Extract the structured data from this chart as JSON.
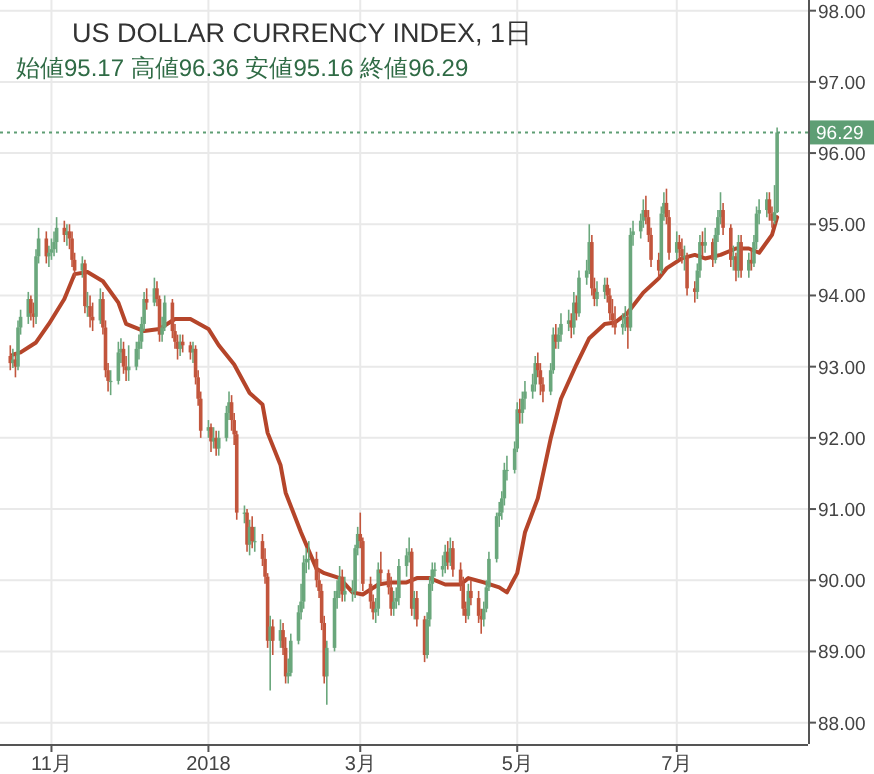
{
  "chart_data": {
    "type": "candlestick",
    "title": "US DOLLAR CURRENCY INDEX, 1日",
    "annotations": [
      "始値95.17 高値96.36 安値95.16 終値96.29"
    ],
    "x": [
      "2017-10-16",
      "2017-10-17",
      "2017-10-18",
      "2017-10-19",
      "2017-10-20",
      "2017-10-23",
      "2017-10-24",
      "2017-10-25",
      "2017-10-26",
      "2017-10-27",
      "2017-10-30",
      "2017-10-31",
      "2017-11-01",
      "2017-11-02",
      "2017-11-03",
      "2017-11-06",
      "2017-11-07",
      "2017-11-08",
      "2017-11-09",
      "2017-11-10",
      "2017-11-13",
      "2017-11-14",
      "2017-11-15",
      "2017-11-16",
      "2017-11-17",
      "2017-11-20",
      "2017-11-21",
      "2017-11-22",
      "2017-11-23",
      "2017-11-24",
      "2017-11-27",
      "2017-11-28",
      "2017-11-29",
      "2017-11-30",
      "2017-12-01",
      "2017-12-04",
      "2017-12-05",
      "2017-12-06",
      "2017-12-07",
      "2017-12-08",
      "2017-12-11",
      "2017-12-12",
      "2017-12-13",
      "2017-12-14",
      "2017-12-15",
      "2017-12-18",
      "2017-12-19",
      "2017-12-20",
      "2017-12-21",
      "2017-12-22",
      "2017-12-25",
      "2017-12-26",
      "2017-12-27",
      "2017-12-28",
      "2017-12-29",
      "2018-01-01",
      "2018-01-02",
      "2018-01-03",
      "2018-01-04",
      "2018-01-05",
      "2018-01-08",
      "2018-01-09",
      "2018-01-10",
      "2018-01-11",
      "2018-01-12",
      "2018-01-15",
      "2018-01-16",
      "2018-01-17",
      "2018-01-18",
      "2018-01-19",
      "2018-01-22",
      "2018-01-23",
      "2018-01-24",
      "2018-01-25",
      "2018-01-26",
      "2018-01-29",
      "2018-01-30",
      "2018-01-31",
      "2018-02-01",
      "2018-02-02",
      "2018-02-05",
      "2018-02-06",
      "2018-02-07",
      "2018-02-08",
      "2018-02-09",
      "2018-02-12",
      "2018-02-13",
      "2018-02-14",
      "2018-02-15",
      "2018-02-16",
      "2018-02-19",
      "2018-02-20",
      "2018-02-21",
      "2018-02-22",
      "2018-02-23",
      "2018-02-26",
      "2018-02-27",
      "2018-02-28",
      "2018-03-01",
      "2018-03-02",
      "2018-03-05",
      "2018-03-06",
      "2018-03-07",
      "2018-03-08",
      "2018-03-09",
      "2018-03-12",
      "2018-03-13",
      "2018-03-14",
      "2018-03-15",
      "2018-03-16",
      "2018-03-19",
      "2018-03-20",
      "2018-03-21",
      "2018-03-22",
      "2018-03-23",
      "2018-03-26",
      "2018-03-27",
      "2018-03-28",
      "2018-03-29",
      "2018-03-30",
      "2018-04-02",
      "2018-04-03",
      "2018-04-04",
      "2018-04-05",
      "2018-04-06",
      "2018-04-09",
      "2018-04-10",
      "2018-04-11",
      "2018-04-12",
      "2018-04-13",
      "2018-04-16",
      "2018-04-17",
      "2018-04-18",
      "2018-04-19",
      "2018-04-20",
      "2018-04-23",
      "2018-04-24",
      "2018-04-25",
      "2018-04-26",
      "2018-04-27",
      "2018-04-30",
      "2018-05-01",
      "2018-05-02",
      "2018-05-03",
      "2018-05-04",
      "2018-05-07",
      "2018-05-08",
      "2018-05-09",
      "2018-05-10",
      "2018-05-11",
      "2018-05-14",
      "2018-05-15",
      "2018-05-16",
      "2018-05-17",
      "2018-05-18",
      "2018-05-21",
      "2018-05-22",
      "2018-05-23",
      "2018-05-24",
      "2018-05-25",
      "2018-05-28",
      "2018-05-29",
      "2018-05-30",
      "2018-05-31",
      "2018-06-01",
      "2018-06-04",
      "2018-06-05",
      "2018-06-06",
      "2018-06-07",
      "2018-06-08",
      "2018-06-11",
      "2018-06-12",
      "2018-06-13",
      "2018-06-14",
      "2018-06-15",
      "2018-06-18",
      "2018-06-19",
      "2018-06-20",
      "2018-06-21",
      "2018-06-22",
      "2018-06-25",
      "2018-06-26",
      "2018-06-27",
      "2018-06-28",
      "2018-06-29",
      "2018-07-02",
      "2018-07-03",
      "2018-07-04",
      "2018-07-05",
      "2018-07-06",
      "2018-07-09",
      "2018-07-10",
      "2018-07-11",
      "2018-07-12",
      "2018-07-13",
      "2018-07-16",
      "2018-07-17",
      "2018-07-18",
      "2018-07-19",
      "2018-07-20",
      "2018-07-23",
      "2018-07-24",
      "2018-07-25",
      "2018-07-26",
      "2018-07-27",
      "2018-07-30",
      "2018-07-31",
      "2018-08-01",
      "2018-08-02",
      "2018-08-03",
      "2018-08-06",
      "2018-08-07",
      "2018-08-08",
      "2018-08-09",
      "2018-08-10"
    ],
    "ohlc": [
      [
        93.15,
        93.3,
        92.95,
        93.05
      ],
      [
        93.05,
        93.25,
        92.98,
        93.1
      ],
      [
        93.1,
        93.2,
        92.85,
        93.0
      ],
      [
        93.0,
        93.65,
        92.95,
        93.55
      ],
      [
        93.55,
        93.8,
        93.45,
        93.7
      ],
      [
        93.7,
        94.05,
        93.6,
        93.95
      ],
      [
        93.95,
        94.0,
        93.65,
        93.75
      ],
      [
        93.75,
        93.9,
        93.55,
        93.7
      ],
      [
        93.7,
        94.65,
        93.6,
        94.55
      ],
      [
        94.55,
        94.95,
        94.45,
        94.8
      ],
      [
        94.8,
        94.9,
        94.45,
        94.55
      ],
      [
        94.55,
        94.7,
        94.4,
        94.6
      ],
      [
        94.6,
        94.8,
        94.5,
        94.65
      ],
      [
        94.65,
        94.9,
        94.55,
        94.75
      ],
      [
        94.75,
        95.1,
        94.6,
        94.95
      ],
      [
        94.95,
        95.05,
        94.75,
        94.85
      ],
      [
        94.85,
        95.0,
        94.7,
        94.9
      ],
      [
        94.9,
        95.0,
        94.65,
        94.8
      ],
      [
        94.8,
        94.9,
        94.4,
        94.5
      ],
      [
        94.5,
        94.6,
        94.25,
        94.35
      ],
      [
        94.35,
        94.55,
        94.25,
        94.45
      ],
      [
        94.45,
        94.5,
        93.75,
        93.85
      ],
      [
        93.85,
        94.05,
        93.7,
        93.85
      ],
      [
        93.85,
        94.0,
        93.55,
        93.7
      ],
      [
        93.7,
        93.9,
        93.5,
        93.65
      ],
      [
        93.65,
        94.1,
        93.6,
        93.95
      ],
      [
        93.95,
        94.05,
        93.45,
        93.55
      ],
      [
        93.55,
        93.65,
        92.85,
        92.95
      ],
      [
        92.95,
        93.05,
        92.65,
        92.8
      ],
      [
        92.8,
        92.95,
        92.6,
        92.8
      ],
      [
        92.8,
        93.35,
        92.75,
        93.2
      ],
      [
        93.2,
        93.4,
        93.05,
        93.25
      ],
      [
        93.25,
        93.35,
        92.9,
        93.0
      ],
      [
        93.0,
        93.15,
        92.8,
        92.95
      ],
      [
        92.95,
        93.3,
        92.8,
        93.0
      ],
      [
        93.0,
        93.35,
        92.95,
        93.25
      ],
      [
        93.25,
        93.45,
        93.1,
        93.35
      ],
      [
        93.35,
        93.7,
        93.25,
        93.6
      ],
      [
        93.6,
        94.05,
        93.5,
        93.95
      ],
      [
        93.95,
        94.1,
        93.8,
        93.9
      ],
      [
        93.9,
        94.25,
        93.85,
        94.1
      ],
      [
        94.1,
        94.2,
        93.85,
        93.95
      ],
      [
        93.95,
        94.0,
        93.35,
        93.45
      ],
      [
        93.45,
        93.7,
        93.35,
        93.55
      ],
      [
        93.55,
        94.0,
        93.5,
        93.9
      ],
      [
        93.9,
        93.95,
        93.4,
        93.5
      ],
      [
        93.5,
        93.6,
        93.25,
        93.35
      ],
      [
        93.35,
        93.45,
        93.1,
        93.25
      ],
      [
        93.25,
        93.45,
        93.15,
        93.35
      ],
      [
        93.35,
        93.45,
        93.2,
        93.3
      ],
      [
        93.3,
        93.35,
        93.1,
        93.2
      ],
      [
        93.2,
        93.35,
        93.05,
        93.25
      ],
      [
        93.25,
        93.3,
        92.75,
        92.85
      ],
      [
        92.85,
        92.95,
        92.45,
        92.55
      ],
      [
        92.55,
        92.65,
        92.0,
        92.1
      ],
      [
        92.1,
        92.25,
        92.0,
        92.15
      ],
      [
        92.15,
        92.2,
        91.8,
        91.95
      ],
      [
        91.95,
        92.15,
        91.85,
        92.0
      ],
      [
        92.0,
        92.1,
        91.75,
        91.85
      ],
      [
        91.85,
        92.1,
        91.75,
        92.0
      ],
      [
        92.0,
        92.45,
        91.95,
        92.35
      ],
      [
        92.35,
        92.65,
        92.25,
        92.5
      ],
      [
        92.5,
        92.6,
        92.1,
        92.25
      ],
      [
        92.25,
        92.35,
        91.9,
        92.05
      ],
      [
        92.05,
        92.1,
        90.85,
        90.95
      ],
      [
        90.95,
        91.05,
        90.8,
        90.95
      ],
      [
        90.95,
        91.0,
        90.4,
        90.5
      ],
      [
        90.5,
        90.85,
        90.35,
        90.75
      ],
      [
        90.75,
        90.9,
        90.45,
        90.55
      ],
      [
        90.55,
        90.75,
        90.4,
        90.55
      ],
      [
        90.55,
        90.65,
        90.2,
        90.3
      ],
      [
        90.3,
        90.45,
        89.95,
        90.05
      ],
      [
        90.05,
        90.1,
        89.05,
        89.15
      ],
      [
        89.15,
        89.5,
        88.45,
        89.35
      ],
      [
        89.35,
        89.45,
        88.95,
        89.15
      ],
      [
        89.15,
        89.45,
        89.05,
        89.3
      ],
      [
        89.3,
        89.4,
        88.95,
        89.05
      ],
      [
        89.05,
        89.2,
        88.55,
        88.65
      ],
      [
        88.65,
        88.9,
        88.55,
        88.7
      ],
      [
        88.7,
        89.25,
        88.65,
        89.15
      ],
      [
        89.15,
        89.65,
        89.1,
        89.55
      ],
      [
        89.55,
        89.95,
        89.45,
        89.7
      ],
      [
        89.7,
        90.35,
        89.6,
        90.25
      ],
      [
        90.25,
        90.45,
        90.1,
        90.3
      ],
      [
        90.3,
        90.55,
        90.15,
        90.3
      ],
      [
        90.3,
        90.4,
        89.9,
        90.0
      ],
      [
        90.0,
        90.15,
        89.75,
        89.85
      ],
      [
        89.85,
        89.95,
        89.3,
        89.4
      ],
      [
        89.4,
        89.5,
        88.55,
        88.65
      ],
      [
        88.65,
        89.15,
        88.25,
        89.05
      ],
      [
        89.05,
        89.85,
        89.0,
        89.75
      ],
      [
        89.75,
        90.0,
        89.6,
        89.85
      ],
      [
        89.85,
        90.2,
        89.75,
        90.05
      ],
      [
        90.05,
        90.15,
        89.7,
        89.8
      ],
      [
        89.8,
        90.05,
        89.7,
        89.85
      ],
      [
        89.85,
        90.0,
        89.7,
        89.85
      ],
      [
        89.85,
        90.5,
        89.75,
        90.45
      ],
      [
        90.45,
        90.75,
        90.35,
        90.65
      ],
      [
        90.65,
        90.95,
        90.45,
        90.55
      ],
      [
        90.55,
        90.6,
        89.85,
        89.95
      ],
      [
        89.95,
        90.05,
        89.6,
        89.7
      ],
      [
        89.7,
        89.8,
        89.45,
        89.55
      ],
      [
        89.55,
        89.75,
        89.4,
        89.6
      ],
      [
        89.6,
        90.25,
        89.5,
        90.15
      ],
      [
        90.15,
        90.4,
        89.95,
        90.1
      ],
      [
        90.1,
        90.15,
        89.8,
        89.9
      ],
      [
        89.9,
        90.05,
        89.5,
        89.6
      ],
      [
        89.6,
        89.85,
        89.5,
        89.7
      ],
      [
        89.7,
        89.9,
        89.6,
        89.75
      ],
      [
        89.75,
        90.3,
        89.65,
        90.2
      ],
      [
        90.2,
        90.45,
        90.05,
        90.35
      ],
      [
        90.35,
        90.6,
        90.25,
        90.4
      ],
      [
        90.4,
        90.45,
        89.5,
        89.6
      ],
      [
        89.6,
        89.85,
        89.45,
        89.75
      ],
      [
        89.75,
        89.85,
        89.35,
        89.45
      ],
      [
        89.45,
        89.5,
        88.85,
        88.95
      ],
      [
        88.95,
        89.55,
        88.9,
        89.45
      ],
      [
        89.45,
        90.05,
        89.35,
        89.95
      ],
      [
        89.95,
        90.25,
        89.85,
        90.15
      ],
      [
        90.15,
        90.25,
        90.05,
        90.15
      ],
      [
        90.15,
        90.35,
        90.05,
        90.2
      ],
      [
        90.2,
        90.5,
        90.1,
        90.4
      ],
      [
        90.4,
        90.55,
        90.15,
        90.25
      ],
      [
        90.25,
        90.6,
        90.2,
        90.45
      ],
      [
        90.45,
        90.55,
        90.05,
        90.15
      ],
      [
        90.15,
        90.25,
        89.85,
        89.95
      ],
      [
        89.95,
        90.05,
        89.5,
        89.6
      ],
      [
        89.6,
        89.7,
        89.4,
        89.5
      ],
      [
        89.5,
        89.95,
        89.45,
        89.85
      ],
      [
        89.85,
        90.0,
        89.65,
        89.75
      ],
      [
        89.75,
        89.85,
        89.4,
        89.5
      ],
      [
        89.5,
        89.6,
        89.25,
        89.45
      ],
      [
        89.45,
        89.7,
        89.35,
        89.6
      ],
      [
        89.6,
        90.0,
        89.55,
        89.9
      ],
      [
        89.9,
        90.4,
        89.85,
        90.3
      ],
      [
        90.3,
        90.95,
        90.25,
        90.9
      ],
      [
        90.9,
        91.1,
        90.75,
        90.95
      ],
      [
        90.95,
        91.25,
        90.85,
        91.15
      ],
      [
        91.15,
        91.65,
        91.05,
        91.55
      ],
      [
        91.55,
        91.75,
        91.4,
        91.55
      ],
      [
        91.55,
        91.95,
        91.5,
        91.85
      ],
      [
        91.85,
        92.5,
        91.8,
        92.4
      ],
      [
        92.4,
        92.55,
        92.2,
        92.35
      ],
      [
        92.35,
        92.65,
        92.2,
        92.55
      ],
      [
        92.55,
        92.8,
        92.4,
        92.65
      ],
      [
        92.65,
        92.9,
        92.55,
        92.75
      ],
      [
        92.75,
        93.15,
        92.65,
        93.05
      ],
      [
        93.05,
        93.2,
        92.85,
        92.95
      ],
      [
        92.95,
        93.05,
        92.6,
        92.75
      ],
      [
        92.75,
        92.85,
        92.5,
        92.65
      ],
      [
        92.65,
        93.05,
        92.6,
        92.95
      ],
      [
        92.95,
        93.55,
        92.9,
        93.45
      ],
      [
        93.45,
        93.6,
        93.25,
        93.35
      ],
      [
        93.35,
        93.55,
        93.25,
        93.45
      ],
      [
        93.45,
        93.75,
        93.35,
        93.6
      ],
      [
        93.6,
        93.8,
        93.5,
        93.65
      ],
      [
        93.65,
        93.75,
        93.4,
        93.55
      ],
      [
        93.55,
        94.05,
        93.45,
        93.9
      ],
      [
        93.9,
        94.0,
        93.65,
        93.75
      ],
      [
        93.75,
        94.35,
        93.7,
        94.25
      ],
      [
        94.25,
        94.5,
        94.15,
        94.35
      ],
      [
        94.35,
        95.0,
        94.3,
        94.75
      ],
      [
        94.75,
        94.85,
        94.0,
        94.1
      ],
      [
        94.1,
        94.25,
        93.85,
        93.95
      ],
      [
        93.95,
        94.2,
        93.85,
        94.05
      ],
      [
        94.05,
        94.25,
        93.95,
        94.15
      ],
      [
        94.15,
        94.25,
        93.9,
        94.0
      ],
      [
        94.0,
        94.1,
        93.65,
        93.75
      ],
      [
        93.75,
        93.95,
        93.55,
        93.65
      ],
      [
        93.65,
        93.85,
        93.45,
        93.55
      ],
      [
        93.55,
        93.75,
        93.45,
        93.6
      ],
      [
        93.6,
        93.85,
        93.5,
        93.7
      ],
      [
        93.7,
        93.8,
        93.25,
        93.55
      ],
      [
        93.55,
        94.95,
        93.5,
        94.85
      ],
      [
        94.85,
        95.05,
        94.7,
        94.9
      ],
      [
        94.9,
        95.15,
        94.8,
        95.05
      ],
      [
        95.05,
        95.35,
        94.95,
        95.2
      ],
      [
        95.2,
        95.4,
        95.0,
        95.1
      ],
      [
        95.1,
        95.2,
        94.75,
        94.85
      ],
      [
        94.85,
        94.95,
        94.4,
        94.5
      ],
      [
        94.5,
        94.6,
        94.25,
        94.35
      ],
      [
        94.35,
        95.25,
        94.3,
        95.15
      ],
      [
        95.15,
        95.45,
        95.05,
        95.3
      ],
      [
        95.3,
        95.5,
        95.0,
        95.1
      ],
      [
        95.1,
        95.2,
        94.5,
        94.6
      ],
      [
        94.6,
        94.9,
        94.5,
        94.75
      ],
      [
        94.75,
        94.85,
        94.5,
        94.65
      ],
      [
        94.65,
        94.8,
        94.45,
        94.55
      ],
      [
        94.55,
        94.7,
        94.35,
        94.55
      ],
      [
        94.55,
        94.6,
        94.0,
        94.1
      ],
      [
        94.1,
        94.2,
        93.9,
        94.05
      ],
      [
        94.05,
        94.45,
        93.95,
        94.35
      ],
      [
        94.35,
        94.85,
        94.25,
        94.75
      ],
      [
        94.75,
        94.9,
        94.55,
        94.7
      ],
      [
        94.7,
        94.95,
        94.6,
        94.75
      ],
      [
        94.75,
        94.8,
        94.4,
        94.5
      ],
      [
        94.5,
        94.95,
        94.45,
        94.85
      ],
      [
        94.85,
        95.2,
        94.75,
        95.1
      ],
      [
        95.1,
        95.45,
        95.0,
        95.2
      ],
      [
        95.2,
        95.3,
        94.85,
        94.95
      ],
      [
        94.95,
        95.0,
        94.4,
        94.5
      ],
      [
        94.5,
        94.7,
        94.35,
        94.55
      ],
      [
        94.55,
        94.6,
        94.2,
        94.35
      ],
      [
        94.35,
        94.85,
        94.25,
        94.75
      ],
      [
        94.75,
        94.85,
        94.25,
        94.35
      ],
      [
        94.35,
        94.6,
        94.25,
        94.5
      ],
      [
        94.5,
        94.65,
        94.35,
        94.45
      ],
      [
        94.45,
        94.85,
        94.4,
        94.75
      ],
      [
        94.75,
        95.25,
        94.65,
        95.15
      ],
      [
        95.15,
        95.35,
        95.0,
        95.2
      ],
      [
        95.2,
        95.45,
        95.1,
        95.35
      ],
      [
        95.35,
        95.45,
        95.05,
        95.15
      ],
      [
        95.15,
        95.25,
        94.95,
        95.05
      ],
      [
        95.05,
        95.55,
        95.0,
        95.17
      ],
      [
        95.17,
        96.36,
        95.16,
        96.29
      ]
    ],
    "series": [
      {
        "type": "line",
        "color": "#b5452a",
        "x": [
          "2017-10-17",
          "2017-10-20",
          "2017-10-26",
          "2017-10-31",
          "2017-11-06",
          "2017-11-10",
          "2017-11-15",
          "2017-11-21",
          "2017-11-27",
          "2017-11-30",
          "2017-12-07",
          "2017-12-13",
          "2017-12-19",
          "2017-12-25",
          "2018-01-01",
          "2018-01-05",
          "2018-01-11",
          "2018-01-17",
          "2018-01-22",
          "2018-01-24",
          "2018-01-29",
          "2018-01-31",
          "2018-02-06",
          "2018-02-12",
          "2018-02-15",
          "2018-02-21",
          "2018-02-26",
          "2018-03-02",
          "2018-03-08",
          "2018-03-13",
          "2018-03-19",
          "2018-03-23",
          "2018-03-28",
          "2018-04-03",
          "2018-04-09",
          "2018-04-12",
          "2018-04-18",
          "2018-04-24",
          "2018-04-27",
          "2018-05-01",
          "2018-05-04",
          "2018-05-09",
          "2018-05-14",
          "2018-05-18",
          "2018-05-24",
          "2018-05-29",
          "2018-06-04",
          "2018-06-08",
          "2018-06-13",
          "2018-06-19",
          "2018-06-25",
          "2018-06-28",
          "2018-07-04",
          "2018-07-09",
          "2018-07-13",
          "2018-07-19",
          "2018-07-25",
          "2018-07-30",
          "2018-08-03",
          "2018-08-08",
          "2018-08-10"
        ],
        "values": [
          93.17,
          93.2,
          93.34,
          93.6,
          93.95,
          94.3,
          94.33,
          94.2,
          93.9,
          93.6,
          93.5,
          93.53,
          93.67,
          93.67,
          93.53,
          93.3,
          93.03,
          92.63,
          92.47,
          92.07,
          91.62,
          91.23,
          90.67,
          90.16,
          90.1,
          90.03,
          89.83,
          89.8,
          89.94,
          89.97,
          89.97,
          90.03,
          90.03,
          89.94,
          89.94,
          90.03,
          89.97,
          89.9,
          89.83,
          90.1,
          90.67,
          91.15,
          91.99,
          92.55,
          93.03,
          93.4,
          93.6,
          93.62,
          93.76,
          94.04,
          94.24,
          94.38,
          94.52,
          94.57,
          94.52,
          94.57,
          94.66,
          94.66,
          94.6,
          94.85,
          95.1
        ]
      }
    ],
    "xlim": [
      "2017-10-12",
      "2018-08-22"
    ],
    "ylim": [
      87.7,
      98.15
    ],
    "xticks": [
      {
        "value": "2017-11-01",
        "label": "11月"
      },
      {
        "value": "2018-01-01",
        "label": "2018"
      },
      {
        "value": "2018-03-01",
        "label": "3月"
      },
      {
        "value": "2018-05-01",
        "label": "5月"
      },
      {
        "value": "2018-07-02",
        "label": "7月"
      }
    ],
    "yticks": [
      {
        "value": 88,
        "label": "88.00"
      },
      {
        "value": 89,
        "label": "89.00"
      },
      {
        "value": 90,
        "label": "90.00"
      },
      {
        "value": 91,
        "label": "91.00"
      },
      {
        "value": 92,
        "label": "92.00"
      },
      {
        "value": 93,
        "label": "93.00"
      },
      {
        "value": 94,
        "label": "94.00"
      },
      {
        "value": 95,
        "label": "95.00"
      },
      {
        "value": 96,
        "label": "96.00"
      },
      {
        "value": 97,
        "label": "97.00"
      },
      {
        "value": 98,
        "label": "98.00"
      }
    ],
    "grid": true,
    "ref_lines": [
      {
        "axis": "y",
        "value": 96.29,
        "label": "96.29",
        "color": "#5e9e74",
        "line_style": "dotted"
      }
    ]
  }
}
